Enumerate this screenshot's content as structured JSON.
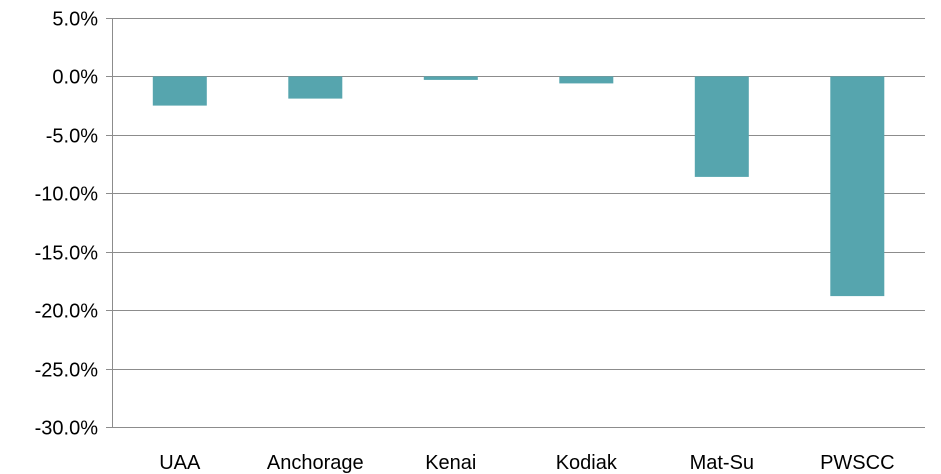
{
  "chart_data": {
    "type": "bar",
    "categories": [
      "UAA",
      "Anchorage",
      "Kenai",
      "Kodiak",
      "Mat-Su",
      "PWSCC"
    ],
    "values": [
      -2.5,
      -1.9,
      -0.3,
      -0.6,
      -8.6,
      -18.8
    ],
    "title": "",
    "xlabel": "",
    "ylabel": "",
    "ylim": [
      -30,
      5
    ],
    "yticks": [
      5,
      0,
      -5,
      -10,
      -15,
      -20,
      -25,
      -30
    ],
    "ytick_labels": [
      "5.0%",
      "0.0%",
      "-5.0%",
      "-10.0%",
      "-15.0%",
      "-20.0%",
      "-25.0%",
      "-30.0%"
    ],
    "bar_color": "#56a5ae",
    "grid": true,
    "legend": "none"
  }
}
